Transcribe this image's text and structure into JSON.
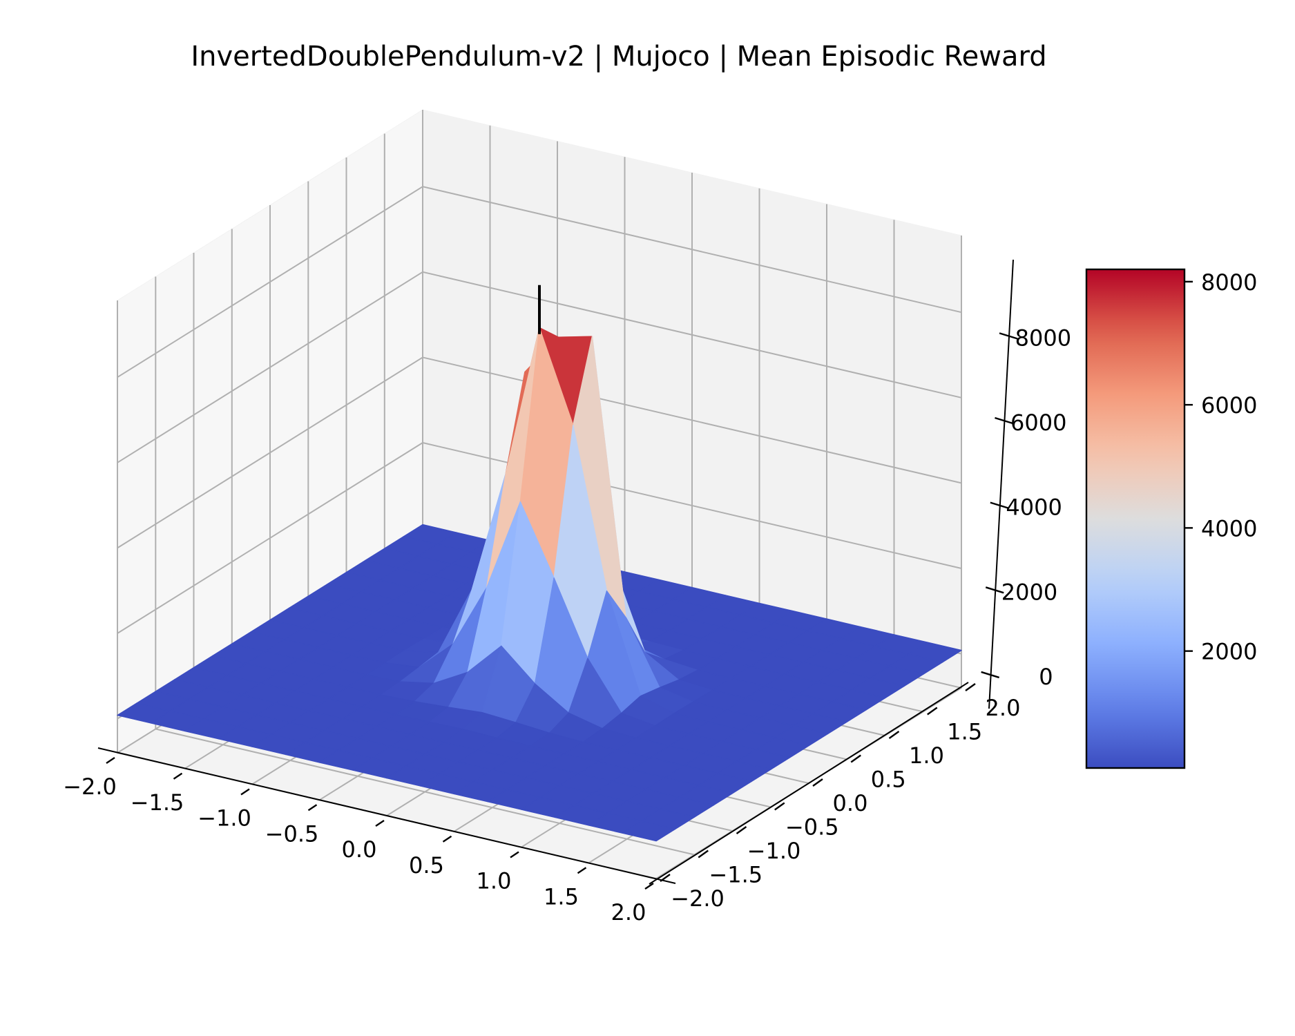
{
  "chart_data": {
    "type": "surface3d",
    "title": "InvertedDoublePendulum-v2 | Mujoco | Mean Episodic Reward",
    "xlabel": "",
    "ylabel": "",
    "zlabel": "",
    "x_ticks": [
      "−2.0",
      "−1.5",
      "−1.0",
      "−0.5",
      "0.0",
      "0.5",
      "1.0",
      "1.5",
      "2.0"
    ],
    "y_ticks": [
      "−2.0",
      "−1.5",
      "−1.0",
      "−0.5",
      "0.0",
      "0.5",
      "1.0",
      "1.5",
      "2.0"
    ],
    "z_ticks": [
      "0",
      "2000",
      "4000",
      "6000",
      "8000"
    ],
    "x_range": [
      -2.0,
      2.0
    ],
    "y_range": [
      -2.0,
      2.0
    ],
    "z_range": [
      -800,
      9800
    ],
    "colormap": "coolwarm",
    "color_min": 100,
    "color_max": 8200,
    "colorbar_ticks": [
      "2000",
      "4000",
      "6000",
      "8000"
    ],
    "colorbar_tick_values": [
      2000,
      4000,
      6000,
      8000
    ],
    "grid": true,
    "marker_line": {
      "x": 0.0,
      "y": 0.0,
      "z_from": 8250,
      "z_to": 9400,
      "color": "#000000"
    },
    "surface": {
      "x": [
        -2.0,
        -1.75,
        -1.5,
        -1.25,
        -1.0,
        -0.75,
        -0.5,
        -0.25,
        0.0,
        0.25,
        0.5,
        0.75,
        1.0,
        1.25,
        1.5,
        1.75,
        2.0
      ],
      "y": [
        -2.0,
        -1.75,
        -1.5,
        -1.25,
        -1.0,
        -0.75,
        -0.5,
        -0.25,
        0.0,
        0.25,
        0.5,
        0.75,
        1.0,
        1.25,
        1.5,
        1.75,
        2.0
      ],
      "z": [
        [
          80,
          80,
          80,
          80,
          80,
          80,
          80,
          80,
          80,
          80,
          80,
          80,
          80,
          80,
          80,
          80,
          80
        ],
        [
          80,
          80,
          80,
          80,
          80,
          80,
          80,
          80,
          80,
          80,
          80,
          80,
          80,
          80,
          80,
          80,
          80
        ],
        [
          80,
          80,
          80,
          80,
          80,
          80,
          80,
          80,
          80,
          80,
          80,
          80,
          80,
          80,
          80,
          80,
          80
        ],
        [
          80,
          80,
          80,
          80,
          80,
          80,
          80,
          80,
          80,
          80,
          80,
          80,
          80,
          80,
          80,
          80,
          80
        ],
        [
          80,
          80,
          80,
          80,
          80,
          80,
          80,
          90,
          110,
          90,
          80,
          80,
          80,
          80,
          80,
          80,
          80
        ],
        [
          80,
          80,
          80,
          80,
          80,
          80,
          110,
          160,
          220,
          170,
          110,
          80,
          80,
          80,
          80,
          80,
          80
        ],
        [
          80,
          80,
          80,
          80,
          80,
          110,
          260,
          700,
          1500,
          800,
          300,
          120,
          80,
          80,
          80,
          80,
          80
        ],
        [
          80,
          80,
          80,
          80,
          90,
          170,
          900,
          2400,
          4600,
          3000,
          1300,
          200,
          90,
          80,
          80,
          80,
          80
        ],
        [
          80,
          80,
          80,
          80,
          100,
          240,
          1900,
          4800,
          8400,
          6300,
          2600,
          320,
          100,
          80,
          80,
          80,
          80
        ],
        [
          80,
          80,
          80,
          80,
          90,
          180,
          1100,
          6900,
          7900,
          8100,
          1700,
          240,
          90,
          80,
          80,
          80,
          80
        ],
        [
          80,
          80,
          80,
          80,
          80,
          120,
          380,
          2000,
          3300,
          2600,
          600,
          140,
          80,
          80,
          80,
          80,
          80
        ],
        [
          80,
          80,
          80,
          80,
          80,
          90,
          150,
          320,
          520,
          350,
          160,
          90,
          80,
          80,
          80,
          80,
          80
        ],
        [
          80,
          80,
          80,
          80,
          80,
          80,
          90,
          110,
          140,
          110,
          90,
          80,
          80,
          80,
          80,
          80,
          80
        ],
        [
          80,
          80,
          80,
          80,
          80,
          80,
          80,
          80,
          80,
          80,
          80,
          80,
          80,
          80,
          80,
          80,
          80
        ],
        [
          80,
          80,
          80,
          80,
          80,
          80,
          80,
          80,
          80,
          80,
          80,
          80,
          80,
          80,
          80,
          80,
          80
        ],
        [
          80,
          80,
          80,
          80,
          80,
          80,
          80,
          80,
          80,
          80,
          80,
          80,
          80,
          80,
          80,
          80,
          80
        ],
        [
          80,
          80,
          80,
          80,
          80,
          80,
          80,
          80,
          80,
          80,
          80,
          80,
          80,
          80,
          80,
          80,
          80
        ]
      ]
    }
  }
}
